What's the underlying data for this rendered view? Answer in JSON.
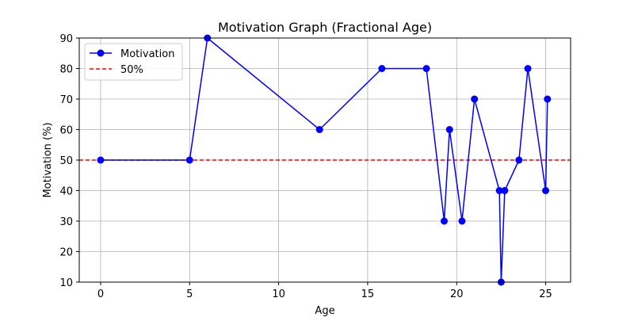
{
  "chart_data": {
    "type": "line",
    "title": "Motivation Graph (Fractional Age)",
    "xlabel": "Age",
    "ylabel": "Motivation (%)",
    "xlim": [
      -1.2,
      26.4
    ],
    "ylim": [
      10,
      90
    ],
    "xticks": [
      0,
      5,
      10,
      15,
      20,
      25
    ],
    "yticks": [
      10,
      20,
      30,
      40,
      50,
      60,
      70,
      80,
      90
    ],
    "grid": true,
    "legend_position": "top-left",
    "series": [
      {
        "name": "Motivation",
        "color": "#0000ff",
        "style": "solid",
        "marker": "circle",
        "x": [
          0,
          5,
          6,
          12.3,
          15.8,
          18.3,
          19.3,
          19.6,
          20.3,
          21,
          22.4,
          22.5,
          22.7,
          23.5,
          24,
          25,
          25.1
        ],
        "y": [
          50,
          50,
          90,
          60,
          80,
          80,
          30,
          60,
          30,
          70,
          40,
          10,
          40,
          50,
          80,
          40,
          70
        ]
      },
      {
        "name": "50%",
        "color": "#ff0000",
        "style": "dashed",
        "type": "hline",
        "y": 50
      }
    ]
  }
}
